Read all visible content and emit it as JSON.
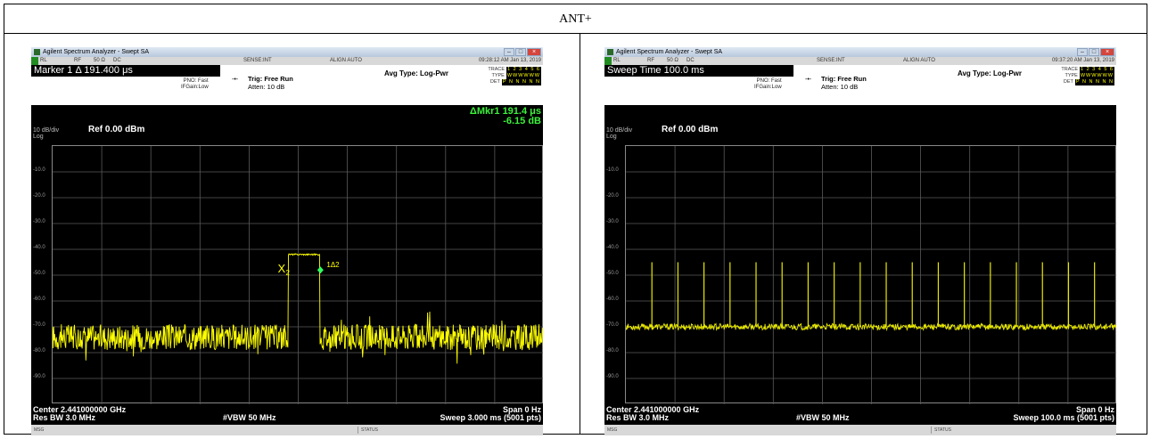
{
  "page_title": "ANT+",
  "panels": [
    {
      "app_title": "Agilent Spectrum Analyzer - Swept SA",
      "status_row": {
        "rl": "RL",
        "rf": "RF",
        "impedance": "50 Ω",
        "coupling": "DC",
        "sense": "SENSE:INT",
        "align": "ALIGN AUTO",
        "datetime": "09:28:12 AM Jan 13, 2019"
      },
      "main_readout": "Marker 1 Δ 191.400 μs",
      "pno": "PNO: Fast",
      "ifgain": "IFGain:Low",
      "trig": "Trig: Free Run",
      "atten": "Atten: 10 dB",
      "avg_type": "Avg Type: Log-Pwr",
      "trace_label": "TRACE",
      "trace_nums": "1 2 3 4 5 6",
      "type_label": "TYPE",
      "type_value": "WWWWWW",
      "det_label": "DET",
      "det_value": "P N N N N N",
      "scale_label": "10 dB/div",
      "log_label": "Log",
      "ref_level": "Ref 0.00 dBm",
      "marker_delta_line1": "ΔMkr1 191.4 μs",
      "marker_delta_line2": "-6.15 dB",
      "marker_x_label": "X",
      "marker_x_sub": "2",
      "marker_delta_label": "1Δ2",
      "center": "Center 2.441000000 GHz",
      "res_bw": "Res BW 3.0 MHz",
      "vbw": "#VBW 50 MHz",
      "span": "Span 0 Hz",
      "sweep": "Sweep  3.000 ms (5001 pts)",
      "msg": "MSG",
      "status": "STATUS",
      "trace_color": "#ffff00",
      "chart_data": {
        "type": "line",
        "title": "",
        "xlabel": "",
        "ylabel": "",
        "y_ticks": [
          "-10.0",
          "-20.0",
          "-30.0",
          "-40.0",
          "-50.0",
          "-60.0",
          "-70.0",
          "-80.0",
          "-90.0"
        ],
        "ylim": [
          -100,
          0
        ],
        "xlim": [
          0,
          3.0
        ],
        "x_unit": "ms",
        "series": [
          {
            "x": [
              0,
              0.3,
              0.6,
              0.9,
              1.2,
              1.43,
              1.44,
              1.63,
              1.64,
              1.8,
              2.1,
              2.4,
              2.7,
              3.0
            ],
            "y": [
              -74,
              -75,
              -73,
              -74,
              -75,
              -74,
              -42,
              -42,
              -74,
              -74,
              -75,
              -74,
              -73,
              -74
            ]
          }
        ],
        "grid": true
      }
    },
    {
      "app_title": "Agilent Spectrum Analyzer - Swept SA",
      "status_row": {
        "rl": "RL",
        "rf": "RF",
        "impedance": "50 Ω",
        "coupling": "DC",
        "sense": "SENSE:INT",
        "align": "ALIGN AUTO",
        "datetime": "09:37:20 AM Jan 13, 2019"
      },
      "main_readout": "Sweep Time 100.0 ms",
      "pno": "PNO: Fast",
      "ifgain": "IFGain:Low",
      "trig": "Trig: Free Run",
      "atten": "Atten: 10 dB",
      "avg_type": "Avg Type: Log-Pwr",
      "trace_label": "TRACE",
      "trace_nums": "1 2 3 4 5 6",
      "type_label": "TYPE",
      "type_value": "WWWWWW",
      "det_label": "DET",
      "det_value": "P N N N N N",
      "scale_label": "10 dB/div",
      "log_label": "Log",
      "ref_level": "Ref 0.00 dBm",
      "center": "Center 2.441000000 GHz",
      "res_bw": "Res BW 3.0 MHz",
      "vbw": "#VBW 50 MHz",
      "span": "Span 0 Hz",
      "sweep": "Sweep  100.0 ms (5001 pts)",
      "msg": "MSG",
      "status": "STATUS",
      "trace_color": "#e8e800",
      "chart_data": {
        "type": "line",
        "title": "",
        "xlabel": "",
        "ylabel": "",
        "y_ticks": [
          "-10.0",
          "-20.0",
          "-30.0",
          "-40.0",
          "-50.0",
          "-60.0",
          "-70.0",
          "-80.0",
          "-90.0"
        ],
        "ylim": [
          -100,
          0
        ],
        "xlim": [
          0,
          100
        ],
        "x_unit": "ms",
        "noise_floor_dbm": -70,
        "pulse_peak_dbm": -45,
        "pulse_times_ms": [
          5.3,
          10.6,
          15.9,
          21.2,
          26.5,
          31.8,
          37.1,
          42.4,
          47.7,
          53.0,
          58.3,
          63.6,
          68.9,
          74.2,
          79.5,
          84.8,
          90.1,
          95.4
        ],
        "grid": true
      }
    }
  ]
}
